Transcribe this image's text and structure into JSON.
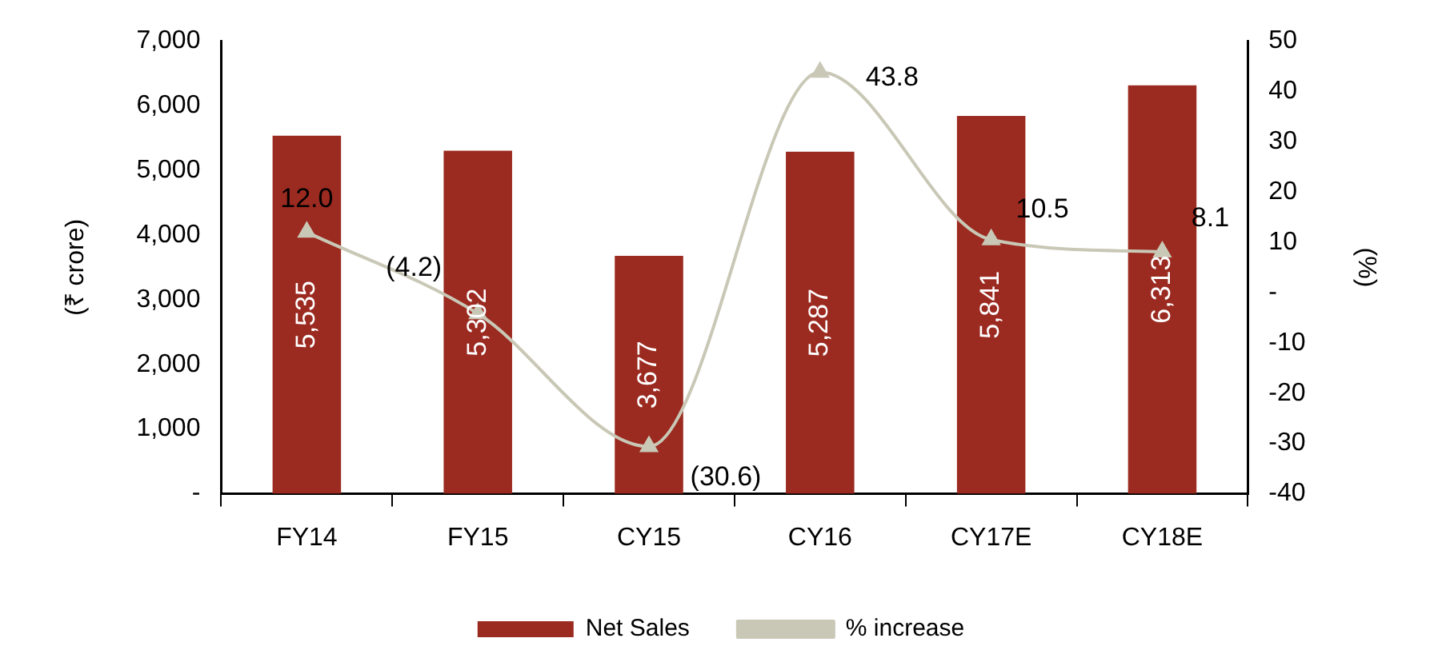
{
  "chart_data": {
    "type": "bar",
    "categories": [
      "FY14",
      "FY15",
      "CY15",
      "CY16",
      "CY17E",
      "CY18E"
    ],
    "ylabel": "(₹ crore)",
    "y2label": "(%)",
    "series": [
      {
        "name": "Net Sales",
        "color": "#9b2a20",
        "values": [
          5535,
          5302,
          3677,
          5287,
          5841,
          6313
        ],
        "value_labels": [
          "5,535",
          "5,302",
          "3,677",
          "5,287",
          "5,841",
          "6,313"
        ]
      },
      {
        "name": "% increase",
        "type": "line",
        "axis": "y2",
        "color": "#c9c8b6",
        "values": [
          12.0,
          -4.2,
          -30.6,
          43.8,
          10.5,
          8.1
        ],
        "value_labels": [
          "12.0",
          "(4.2)",
          "(30.6)",
          "43.8",
          "10.5",
          "8.1"
        ]
      }
    ],
    "ylim": [
      0,
      7000
    ],
    "yticks": [
      {
        "value": 0,
        "label": "-"
      },
      {
        "value": 1000,
        "label": "1,000"
      },
      {
        "value": 2000,
        "label": "2,000"
      },
      {
        "value": 3000,
        "label": "3,000"
      },
      {
        "value": 4000,
        "label": "4,000"
      },
      {
        "value": 5000,
        "label": "5,000"
      },
      {
        "value": 6000,
        "label": "6,000"
      },
      {
        "value": 7000,
        "label": "7,000"
      }
    ],
    "y2lim": [
      -40,
      50
    ],
    "y2ticks": [
      -40,
      -30,
      -20,
      -10,
      {
        "value": 0,
        "label": "-"
      },
      10,
      20,
      30,
      40,
      50
    ],
    "grid": false,
    "legend": "bottom",
    "marker": "triangle",
    "line_style": "solid"
  }
}
